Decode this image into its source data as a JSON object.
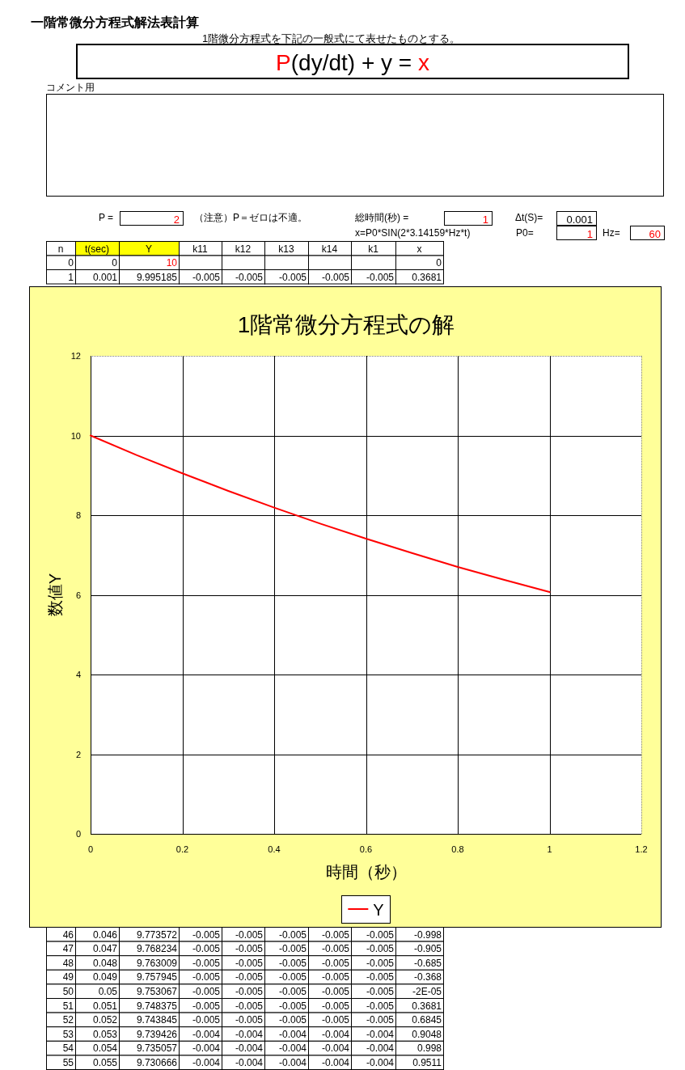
{
  "chart_data": [
    {
      "type": "other",
      "title": "一階常微分方程式解法表計算",
      "subtitle": "1階微分方程式を下記の一般式にて表せたものとする。",
      "annotations": [
        "P(dy/dt) + y = x",
        "コメント用",
        "P =",
        "2",
        "（注意）P＝ゼロは不適。",
        "総時間(秒) =",
        "1",
        "Δt(S)=",
        "0.001",
        "x=P0*SIN(2*3.14159*Hz*t)",
        "P0=",
        "1",
        "Hz=",
        "60"
      ]
    },
    {
      "type": "other",
      "categories": [
        "n",
        "t(sec)",
        "Y",
        "k11",
        "k12",
        "k13",
        "k14",
        "k1",
        "x"
      ],
      "annotations": [
        "0",
        "0",
        "10",
        "0",
        "1",
        "0.001",
        "9.995185",
        "-0.005",
        "-0.005",
        "-0.005",
        "-0.005",
        "-0.005",
        "0.3681",
        "46",
        "0.046",
        "9.773572",
        "-0.005",
        "-0.005",
        "-0.005",
        "-0.005",
        "-0.005",
        "-0.998",
        "47",
        "0.047",
        "9.768234",
        "-0.005",
        "-0.005",
        "-0.005",
        "-0.005",
        "-0.005",
        "-0.905",
        "48",
        "0.048",
        "9.763009",
        "-0.005",
        "-0.005",
        "-0.005",
        "-0.005",
        "-0.005",
        "-0.685",
        "49",
        "0.049",
        "9.757945",
        "-0.005",
        "-0.005",
        "-0.005",
        "-0.005",
        "-0.005",
        "-0.368",
        "50",
        "0.05",
        "9.753067",
        "-0.005",
        "-0.005",
        "-0.005",
        "-0.005",
        "-0.005",
        "-2E-05",
        "51",
        "0.051",
        "9.748375",
        "-0.005",
        "-0.005",
        "-0.005",
        "-0.005",
        "-0.005",
        "0.3681",
        "52",
        "0.052",
        "9.743845",
        "-0.005",
        "-0.005",
        "-0.005",
        "-0.005",
        "-0.005",
        "0.6845",
        "53",
        "0.053",
        "9.739426",
        "-0.004",
        "-0.004",
        "-0.004",
        "-0.004",
        "-0.004",
        "0.9048",
        "54",
        "0.054",
        "9.735057",
        "-0.004",
        "-0.004",
        "-0.004",
        "-0.004",
        "-0.004",
        "0.998",
        "55",
        "0.055",
        "9.730666",
        "-0.004",
        "-0.004",
        "-0.004",
        "-0.004",
        "-0.004",
        "0.9511"
      ]
    },
    {
      "type": "line",
      "title": "1階常微分方程式の解",
      "xlabel": "時間（秒）",
      "ylabel": "数値Y",
      "xlim": [
        0,
        1.2
      ],
      "xticks": [
        0,
        0.2,
        0.4,
        0.6,
        0.8,
        1,
        1.2
      ],
      "ylim": [
        0,
        12
      ],
      "yticks": [
        0,
        2,
        4,
        6,
        8,
        10,
        12
      ],
      "grid": true,
      "legend": "bottom",
      "series": [
        {
          "name": "Y",
          "color": "#ff0000",
          "x": [
            0,
            0.1,
            0.2,
            0.3,
            0.4,
            0.5,
            0.6,
            0.7,
            0.8,
            0.9,
            1
          ],
          "values": [
            10,
            9.51,
            9.05,
            8.61,
            8.19,
            7.79,
            7.41,
            7.05,
            6.7,
            6.38,
            6.07
          ]
        }
      ]
    }
  ]
}
